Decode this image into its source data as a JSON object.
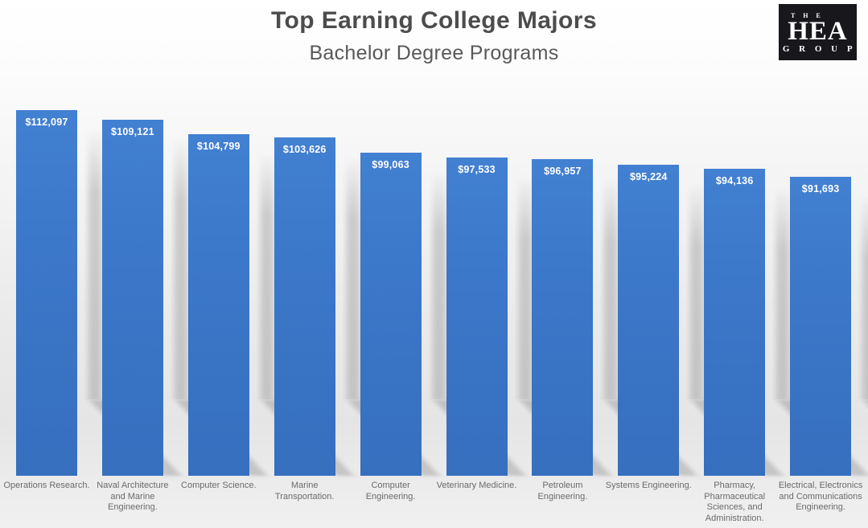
{
  "page": {
    "title": "Top Earning College Majors",
    "subtitle": "Bachelor Degree Programs"
  },
  "logo": {
    "top": "T H E",
    "name": "HEA",
    "bottom": "G R O U P"
  },
  "colors": {
    "bar_blue": "#3b76c8",
    "title_gray": "#4c4c4c",
    "subtitle_gray": "#595959",
    "category_label_gray": "#6b6b6b",
    "value_label_white": "#ffffff",
    "logo_background": "#18181c",
    "logo_text": "#ffffff",
    "background_top": "#ffffff",
    "background_bottom": "#ededed",
    "shadow_gray": "#9a9a9a"
  },
  "chart_data": {
    "type": "bar",
    "title": "Top Earning College Majors",
    "subtitle": "Bachelor Degree Programs",
    "orientation": "vertical",
    "grid": false,
    "legend": false,
    "axes_visible": false,
    "ylim": [
      0,
      112097
    ],
    "categories": [
      "Operations Research.",
      "Naval Architecture and Marine Engineering.",
      "Computer Science.",
      "Marine Transportation.",
      "Computer Engineering.",
      "Veterinary Medicine.",
      "Petroleum Engineering.",
      "Systems Engineering.",
      "Pharmacy, Pharmaceutical Sciences, and Administration.",
      "Electrical, Electronics and Communications Engineering."
    ],
    "category_lines": [
      [
        "Operations Research."
      ],
      [
        "Naval Architecture",
        "and Marine",
        "Engineering."
      ],
      [
        "Computer Science."
      ],
      [
        "Marine",
        "Transportation."
      ],
      [
        "Computer",
        "Engineering."
      ],
      [
        "Veterinary Medicine."
      ],
      [
        "Petroleum",
        "Engineering."
      ],
      [
        "Systems Engineering."
      ],
      [
        "Pharmacy,",
        "Pharmaceutical",
        "Sciences, and",
        "Administration."
      ],
      [
        "Electrical, Electronics",
        "and Communications",
        "Engineering."
      ]
    ],
    "values": [
      112097,
      109121,
      104799,
      103626,
      99063,
      97533,
      96957,
      95224,
      94136,
      91693
    ],
    "value_labels": [
      "$112,097",
      "$109,121",
      "$104,799",
      "$103,626",
      "$99,063",
      "$97,533",
      "$96,957",
      "$95,224",
      "$94,136",
      "$91,693"
    ]
  }
}
